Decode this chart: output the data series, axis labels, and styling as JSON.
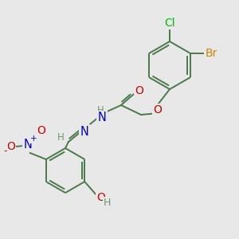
{
  "bg_color": "#e8e8e8",
  "bond_color": "#4a7a4a",
  "atom_colors": {
    "Cl": "#00bb00",
    "Br": "#cc8800",
    "O": "#cc0000",
    "N": "#0000cc",
    "H": "#6a9a6a",
    "C": "#4a7a4a",
    "plus": "#0000cc",
    "minus": "#cc0000"
  },
  "font_size": 8.5,
  "lw": 1.4
}
